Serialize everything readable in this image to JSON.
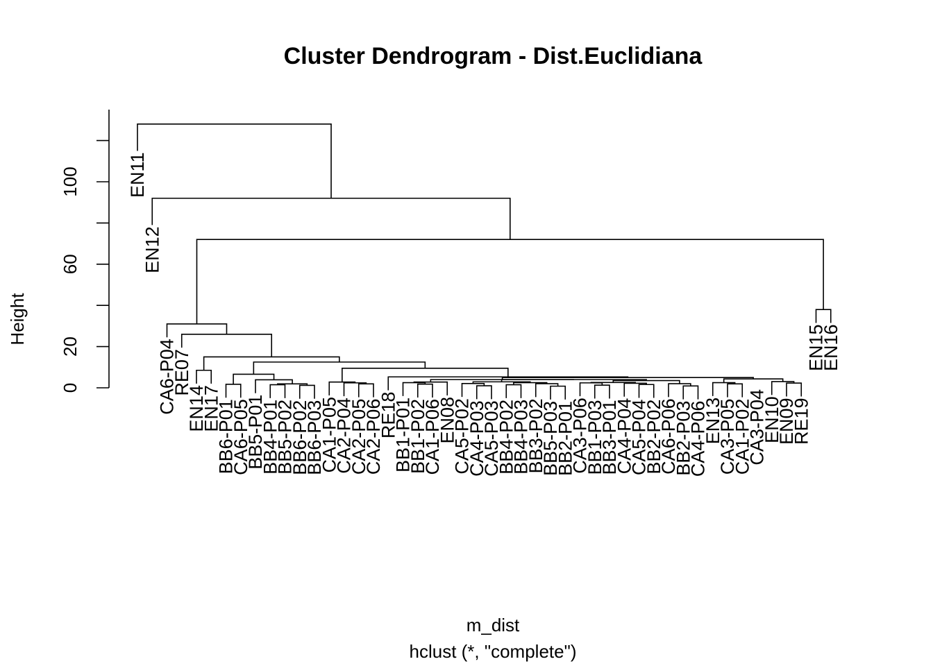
{
  "chart_data": {
    "type": "dendrogram",
    "title": "Cluster Dendrogram - Dist.Euclidiana",
    "xlabel": "m_dist",
    "subtitle": "hclust (*, \"complete\")",
    "ylabel": "Height",
    "ylim": [
      0,
      130
    ],
    "yticks": [
      0,
      20,
      60,
      100
    ],
    "leaves": [
      "EN11",
      "EN12",
      "CA6-P04",
      "RE07",
      "EN14",
      "EN17",
      "BB6-P01",
      "CA6-P05",
      "BB5-P01",
      "BB4-P01",
      "BB5-P02",
      "BB6-P02",
      "BB6-P03",
      "CA1-P05",
      "CA2-P04",
      "CA2-P05",
      "CA2-P06",
      "RE18",
      "BB1-P01",
      "BB1-P02",
      "CA1-P06",
      "EN08",
      "CA5-P02",
      "CA4-P03",
      "CA5-P03",
      "BB4-P02",
      "BB4-P03",
      "BB3-P02",
      "BB5-P03",
      "BB2-P01",
      "CA3-P06",
      "BB1-P03",
      "BB3-P01",
      "CA4-P04",
      "CA5-P04",
      "BB2-P02",
      "CA6-P06",
      "BB2-P03",
      "CA4-P06",
      "EN13",
      "CA3-P05",
      "CA1-P02",
      "CA3-P04",
      "EN10",
      "EN09",
      "RE19",
      "EN15",
      "EN16"
    ],
    "merges": [
      [
        -12,
        -13,
        1.2
      ],
      [
        -10,
        -11,
        1.5
      ],
      [
        1,
        2,
        1.9
      ],
      [
        -9,
        3,
        3.9
      ],
      [
        -7,
        -8,
        1.7
      ],
      [
        5,
        4,
        6.6
      ],
      [
        -29,
        -30,
        0.8
      ],
      [
        -24,
        -25,
        1.0
      ],
      [
        -38,
        -39,
        0.9
      ],
      [
        -32,
        -33,
        1.3
      ],
      [
        -35,
        -36,
        1.6
      ],
      [
        -26,
        -27,
        1.5
      ],
      [
        -28,
        7,
        2.0
      ],
      [
        -37,
        9,
        2.0
      ],
      [
        -34,
        11,
        2.2
      ],
      [
        -31,
        10,
        2.4
      ],
      [
        -23,
        8,
        2.1
      ],
      [
        12,
        13,
        2.5
      ],
      [
        17,
        18,
        2.9
      ],
      [
        16,
        15,
        2.6
      ],
      [
        20,
        14,
        3.5
      ],
      [
        19,
        21,
        4.0
      ],
      [
        -20,
        -21,
        1.8
      ],
      [
        -19,
        23,
        2.5
      ],
      [
        24,
        -22,
        2.8
      ],
      [
        25,
        22,
        4.0
      ],
      [
        -41,
        -42,
        1.9
      ],
      [
        -40,
        27,
        2.5
      ],
      [
        -45,
        -46,
        2.3
      ],
      [
        -44,
        29,
        3.0
      ],
      [
        28,
        30,
        4.3
      ],
      [
        26,
        31,
        5.0
      ],
      [
        -18,
        32,
        5.3
      ],
      [
        -16,
        -17,
        1.9
      ],
      [
        -15,
        34,
        2.4
      ],
      [
        -14,
        35,
        2.8
      ],
      [
        36,
        33,
        9.5
      ],
      [
        6,
        37,
        12.5
      ],
      [
        -5,
        -6,
        8.5
      ],
      [
        39,
        38,
        15.0
      ],
      [
        -4,
        40,
        26.0
      ],
      [
        -3,
        41,
        31.0
      ],
      [
        -47,
        -48,
        38.0
      ],
      [
        42,
        43,
        72.0
      ],
      [
        -2,
        44,
        92.0
      ],
      [
        -1,
        45,
        128.0
      ]
    ],
    "leaf_heights": {
      "EN11": 115,
      "EN12": 79
    }
  }
}
